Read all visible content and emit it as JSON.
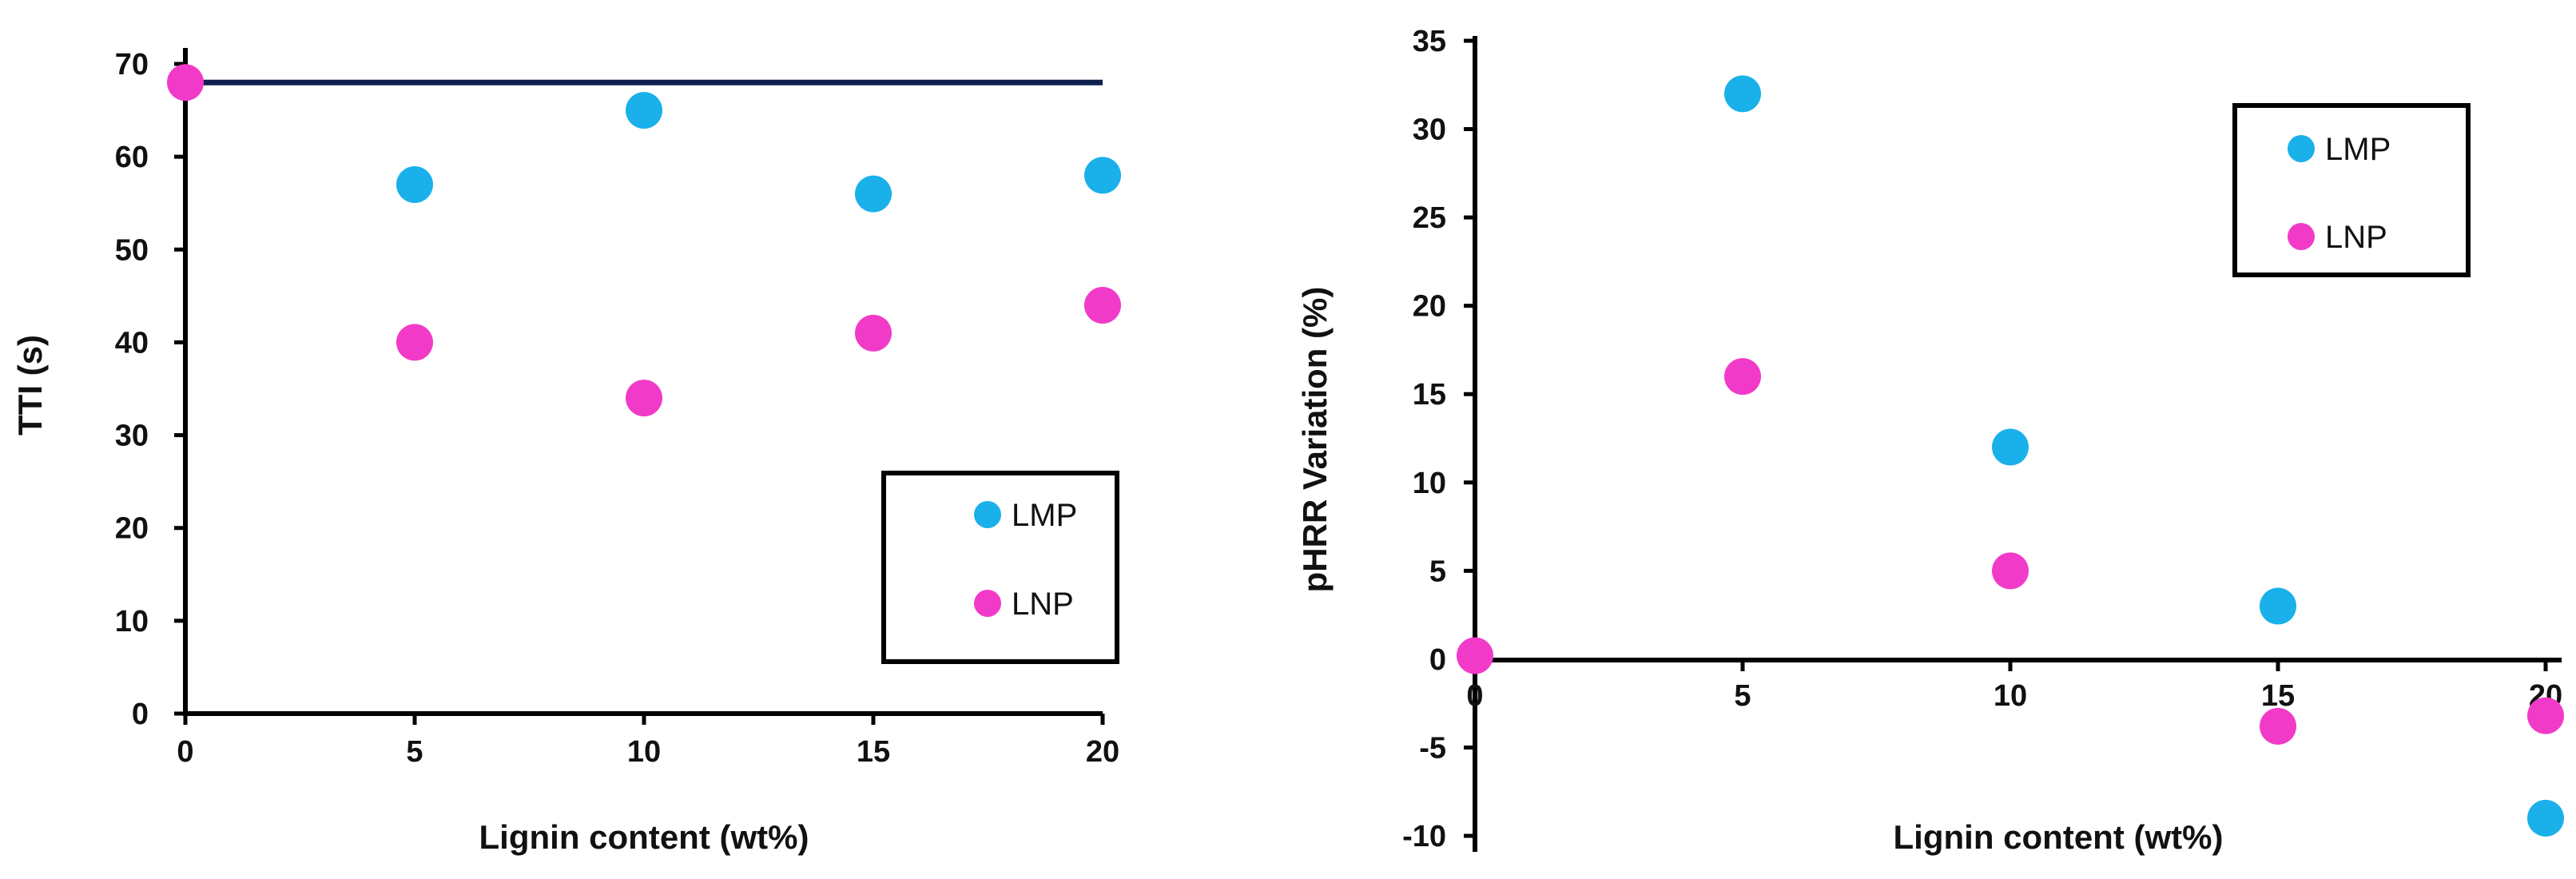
{
  "chart_data": [
    {
      "type": "scatter",
      "title": "",
      "xlabel": "Lignin content (wt%)",
      "ylabel": "TTI (s)",
      "xlim": [
        0,
        20
      ],
      "ylim": [
        0,
        70
      ],
      "xticks": [
        0,
        5,
        10,
        15,
        20
      ],
      "yticks": [
        0,
        10,
        20,
        30,
        40,
        50,
        60,
        70
      ],
      "grid": false,
      "legend_position": "bottom-right",
      "reference_line": {
        "y": 68,
        "color": "#0d1f4f"
      },
      "series": [
        {
          "name": "LMP",
          "color": "#1ab0ea",
          "x": [
            5,
            10,
            15,
            20
          ],
          "y": [
            57,
            65,
            56,
            58
          ]
        },
        {
          "name": "LNP",
          "color": "#f23ac8",
          "x": [
            0,
            5,
            10,
            15,
            20
          ],
          "y": [
            68,
            40,
            34,
            41,
            44
          ]
        }
      ]
    },
    {
      "type": "scatter",
      "title": "",
      "xlabel": "Lignin content (wt%)",
      "ylabel": "pHRR Variation (%)",
      "xlim": [
        0,
        20
      ],
      "ylim": [
        -10,
        35
      ],
      "xticks": [
        0,
        5,
        10,
        15,
        20
      ],
      "yticks": [
        -10,
        -5,
        0,
        5,
        10,
        15,
        20,
        25,
        30,
        35
      ],
      "grid": false,
      "legend_position": "top-right",
      "series": [
        {
          "name": "LMP",
          "color": "#1ab0ea",
          "x": [
            5,
            10,
            15,
            20
          ],
          "y": [
            32,
            12,
            3,
            -9
          ]
        },
        {
          "name": "LNP",
          "color": "#f23ac8",
          "x": [
            0,
            5,
            10,
            15,
            20
          ],
          "y": [
            0.2,
            16,
            5,
            -3.8,
            -3.2
          ]
        }
      ]
    }
  ]
}
